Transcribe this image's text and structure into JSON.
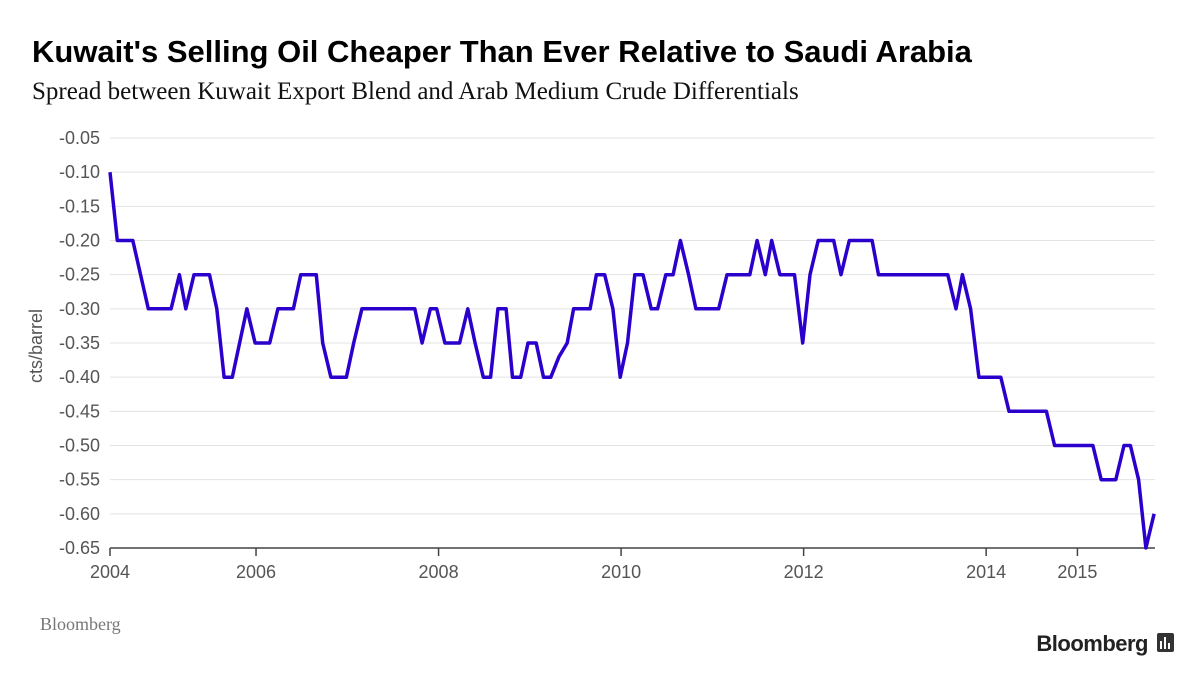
{
  "chart_data": {
    "type": "line",
    "title": "Kuwait's Selling Oil Cheaper Than Ever Relative to Saudi Arabia",
    "subtitle": "Spread between Kuwait Export Blend and Arab Medium Crude Differentials",
    "y_label": "cts/barrel",
    "source": "Bloomberg",
    "logo": "Bloomberg",
    "color": "#2c00cc",
    "grid": true,
    "xlim": [
      2004.4,
      2015.85
    ],
    "xticks": [
      {
        "value": 2004.4,
        "label": "2004"
      },
      2006,
      2008,
      2010,
      2012,
      2014,
      2015
    ],
    "ylim": [
      -0.65,
      -0.05
    ],
    "yticks": [
      -0.05,
      {
        "value": -0.1,
        "label": "-0.10"
      },
      -0.15,
      {
        "value": -0.2,
        "label": "-0.20"
      },
      -0.25,
      {
        "value": -0.3,
        "label": "-0.30"
      },
      -0.35,
      {
        "value": -0.4,
        "label": "-0.40"
      },
      -0.45,
      {
        "value": -0.5,
        "label": "-0.50"
      },
      -0.55,
      {
        "value": -0.6,
        "label": "-0.60"
      },
      -0.65
    ],
    "x": [
      2004.4,
      2004.48,
      2004.65,
      2004.82,
      2005.07,
      2005.16,
      2005.23,
      2005.32,
      2005.49,
      2005.57,
      2005.65,
      2005.74,
      2005.82,
      2005.9,
      2005.99,
      2006.15,
      2006.24,
      2006.41,
      2006.49,
      2006.66,
      2006.73,
      2006.82,
      2006.99,
      2007.07,
      2007.16,
      2007.74,
      2007.82,
      2007.91,
      2007.98,
      2008.07,
      2008.23,
      2008.32,
      2008.4,
      2008.49,
      2008.57,
      2008.65,
      2008.74,
      2008.81,
      2008.9,
      2008.98,
      2009.07,
      2009.15,
      2009.23,
      2009.32,
      2009.41,
      2009.48,
      2009.66,
      2009.73,
      2009.82,
      2009.91,
      2009.99,
      2010.07,
      2010.15,
      2010.24,
      2010.33,
      2010.4,
      2010.49,
      2010.57,
      2010.65,
      2010.74,
      2010.82,
      2011.07,
      2011.16,
      2011.41,
      2011.49,
      2011.58,
      2011.65,
      2011.74,
      2011.9,
      2011.99,
      2012.07,
      2012.16,
      2012.33,
      2012.41,
      2012.5,
      2012.75,
      2012.82,
      2013.58,
      2013.67,
      2013.74,
      2013.83,
      2013.92,
      2014.16,
      2014.25,
      2014.66,
      2014.75,
      2015.17,
      2015.26,
      2015.42,
      2015.51,
      2015.58,
      2015.67,
      2015.75,
      2015.84
    ],
    "values": [
      -0.1,
      -0.2,
      -0.2,
      -0.3,
      -0.3,
      -0.25,
      -0.3,
      -0.25,
      -0.25,
      -0.3,
      -0.4,
      -0.4,
      -0.35,
      -0.3,
      -0.35,
      -0.35,
      -0.3,
      -0.3,
      -0.25,
      -0.25,
      -0.35,
      -0.4,
      -0.4,
      -0.35,
      -0.3,
      -0.3,
      -0.35,
      -0.3,
      -0.3,
      -0.35,
      -0.35,
      -0.3,
      -0.35,
      -0.4,
      -0.4,
      -0.3,
      -0.3,
      -0.4,
      -0.4,
      -0.35,
      -0.35,
      -0.4,
      -0.4,
      -0.37,
      -0.35,
      -0.3,
      -0.3,
      -0.25,
      -0.25,
      -0.3,
      -0.4,
      -0.35,
      -0.25,
      -0.25,
      -0.3,
      -0.3,
      -0.25,
      -0.25,
      -0.2,
      -0.25,
      -0.3,
      -0.3,
      -0.25,
      -0.25,
      -0.2,
      -0.25,
      -0.2,
      -0.25,
      -0.25,
      -0.35,
      -0.25,
      -0.2,
      -0.2,
      -0.25,
      -0.2,
      -0.2,
      -0.25,
      -0.25,
      -0.3,
      -0.25,
      -0.3,
      -0.4,
      -0.4,
      -0.45,
      -0.45,
      -0.5,
      -0.5,
      -0.55,
      -0.55,
      -0.5,
      -0.5,
      -0.55,
      -0.65,
      -0.6
    ]
  }
}
